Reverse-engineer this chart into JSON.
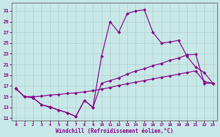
{
  "xlabel": "Windchill (Refroidissement éolien,°C)",
  "bg_color": "#c8e8e8",
  "grid_color": "#b0cccc",
  "line_color": "#880088",
  "xlim": [
    -0.5,
    23.5
  ],
  "ylim": [
    10.5,
    32.5
  ],
  "yticks": [
    11,
    13,
    15,
    17,
    19,
    21,
    23,
    25,
    27,
    29,
    31
  ],
  "xticks": [
    0,
    1,
    2,
    3,
    4,
    5,
    6,
    7,
    8,
    9,
    10,
    11,
    12,
    13,
    14,
    15,
    16,
    17,
    18,
    19,
    20,
    21,
    22,
    23
  ],
  "s1_x": [
    0,
    1,
    2,
    3,
    4,
    5,
    6,
    7,
    8,
    9,
    10,
    11,
    12,
    13,
    14,
    15,
    16,
    17,
    18,
    19,
    20,
    21,
    22,
    23
  ],
  "s1_y": [
    16.5,
    15.0,
    14.8,
    13.5,
    13.1,
    12.5,
    12.0,
    11.3,
    14.3,
    13.0,
    17.5,
    18.0,
    18.5,
    19.2,
    19.8,
    20.2,
    20.8,
    21.2,
    21.8,
    22.2,
    22.8,
    22.9,
    17.5,
    17.5
  ],
  "s2_x": [
    0,
    1,
    2,
    3,
    4,
    5,
    6,
    7,
    8,
    9,
    10,
    11,
    12,
    13,
    14,
    15,
    16,
    17,
    18,
    19,
    20,
    21,
    22,
    23
  ],
  "s2_y": [
    16.5,
    15.0,
    15.0,
    15.1,
    15.3,
    15.4,
    15.6,
    15.7,
    15.9,
    16.1,
    16.4,
    16.7,
    17.1,
    17.4,
    17.7,
    18.0,
    18.3,
    18.6,
    18.9,
    19.2,
    19.5,
    19.8,
    17.8,
    17.5
  ],
  "s3_x": [
    0,
    1,
    2,
    3,
    4,
    5,
    6,
    7,
    8,
    9,
    10,
    11,
    12,
    13,
    14,
    15,
    16,
    17,
    18,
    19,
    20,
    21,
    22,
    23
  ],
  "s3_y": [
    16.5,
    15.0,
    14.8,
    13.5,
    13.0,
    12.5,
    12.0,
    11.3,
    14.3,
    13.0,
    22.5,
    29.0,
    27.0,
    30.5,
    31.0,
    31.2,
    27.0,
    25.0,
    25.2,
    25.5,
    22.5,
    20.5,
    19.5,
    17.5
  ],
  "markersize": 2.5,
  "linewidth": 0.9
}
